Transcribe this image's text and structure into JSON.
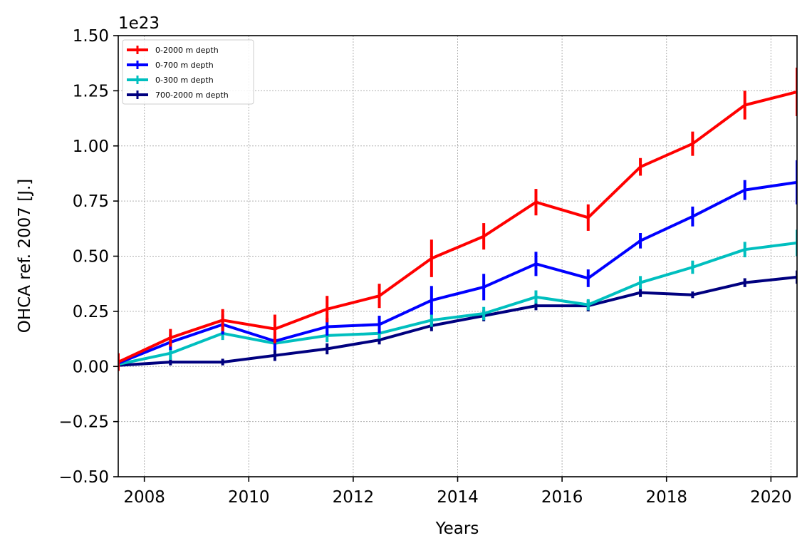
{
  "chart_data": {
    "type": "line",
    "title": "",
    "xlabel": "Years",
    "ylabel": "OHCA ref. 2007 [J.]",
    "y_scale_label": "1e23",
    "xlim": [
      2007.5,
      2020.5
    ],
    "ylim": [
      -0.5,
      1.5
    ],
    "x_ticks": [
      2008,
      2010,
      2012,
      2014,
      2016,
      2018,
      2020
    ],
    "x_tick_labels": [
      "2008",
      "2010",
      "2012",
      "2014",
      "2016",
      "2018",
      "2020"
    ],
    "y_ticks": [
      -0.5,
      -0.25,
      0.0,
      0.25,
      0.5,
      0.75,
      1.0,
      1.25,
      1.5
    ],
    "y_tick_labels": [
      "−0.50",
      "−0.25",
      "0.00",
      "0.25",
      "0.50",
      "0.75",
      "1.00",
      "1.25",
      "1.50"
    ],
    "grid": true,
    "legend_position": "top-left",
    "x": [
      2007.5,
      2008.5,
      2009.5,
      2010.5,
      2011.5,
      2012.5,
      2013.5,
      2014.5,
      2015.5,
      2016.5,
      2017.5,
      2018.5,
      2019.5,
      2020.5
    ],
    "series": [
      {
        "name": "0-2000 m depth",
        "color": "#ff0000",
        "values": [
          0.02,
          0.13,
          0.21,
          0.17,
          0.26,
          0.32,
          0.49,
          0.59,
          0.745,
          0.675,
          0.905,
          1.01,
          1.185,
          1.245
        ],
        "errors": [
          0.04,
          0.04,
          0.05,
          0.065,
          0.06,
          0.055,
          0.085,
          0.06,
          0.06,
          0.06,
          0.04,
          0.055,
          0.065,
          0.11
        ]
      },
      {
        "name": "0-700 m depth",
        "color": "#0000ff",
        "values": [
          0.015,
          0.11,
          0.19,
          0.115,
          0.18,
          0.19,
          0.3,
          0.36,
          0.465,
          0.4,
          0.57,
          0.68,
          0.8,
          0.835
        ],
        "errors": [
          0.03,
          0.035,
          0.045,
          0.04,
          0.04,
          0.04,
          0.065,
          0.06,
          0.055,
          0.04,
          0.035,
          0.045,
          0.045,
          0.1
        ]
      },
      {
        "name": "0-300 m depth",
        "color": "#00bfbf",
        "values": [
          0.01,
          0.06,
          0.15,
          0.105,
          0.14,
          0.15,
          0.21,
          0.24,
          0.315,
          0.28,
          0.38,
          0.45,
          0.53,
          0.56
        ],
        "errors": [
          0.02,
          0.03,
          0.03,
          0.025,
          0.03,
          0.025,
          0.03,
          0.03,
          0.03,
          0.025,
          0.03,
          0.03,
          0.035,
          0.06
        ]
      },
      {
        "name": "700-2000 m depth",
        "color": "#00007f",
        "values": [
          0.005,
          0.02,
          0.02,
          0.05,
          0.08,
          0.12,
          0.185,
          0.23,
          0.275,
          0.275,
          0.335,
          0.325,
          0.38,
          0.405
        ],
        "errors": [
          0.015,
          0.015,
          0.015,
          0.025,
          0.025,
          0.02,
          0.025,
          0.025,
          0.02,
          0.025,
          0.02,
          0.015,
          0.02,
          0.03
        ]
      }
    ]
  }
}
